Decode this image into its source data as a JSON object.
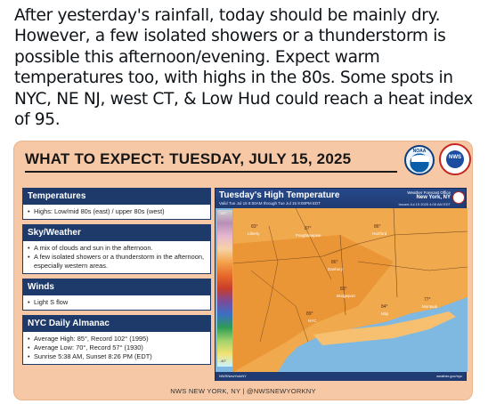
{
  "post": {
    "text": "After yesterday's rainfall, today should be mainly dry. However, a few isolated showers or a thunderstorm is possible this afternoon/evening. Expect warm temperatures too, with highs in the 80s. Some spots in NYC, NE NJ, west CT, & Low Hud could reach a heat index of 95."
  },
  "graphic": {
    "title": "WHAT TO EXPECT: TUESDAY, JULY 15, 2025",
    "logo_noaa": "NOAA",
    "logo_nws": "NWS",
    "footer": "NWS NEW YORK, NY | @NWSNEWYORKNY",
    "sections": [
      {
        "head": "Temperatures",
        "items": [
          "Highs: Low/mid 80s (east) / upper 80s (west)"
        ]
      },
      {
        "head": "Sky/Weather",
        "items": [
          "A mix of clouds and sun in the afternoon.",
          "A few isolated showers or a thunderstorm in the afternoon, especially western areas."
        ]
      },
      {
        "head": "Winds",
        "items": [
          "Light S flow"
        ]
      },
      {
        "head": "NYC Daily Almanac",
        "items": [
          "Average High: 85°, Record 102° (1995)",
          "Average Low: 70°, Record 57° (1930)",
          "Sunrise 5:38 AM, Sunset 8:26 PM (EDT)"
        ]
      }
    ],
    "map": {
      "title": "Tuesday's High Temperature",
      "valid": "Valid Tue Jul 15 8:00AM through Tue Jul 15 9:00PM EDT",
      "office_label": "Weather Forecast Office",
      "office_city": "New York, NY",
      "issued": "Issued Jul 15 2025 4:05 AM EDT",
      "footer_left": "NWSNewYorkNY",
      "footer_right": "weather.gov/nyc",
      "legend_top": "120°",
      "legend_bottom": "-40°",
      "points": [
        {
          "label": "Liberty",
          "temp": "83°"
        },
        {
          "label": "Poughkeepsie",
          "temp": "87°"
        },
        {
          "label": "Hartford",
          "temp": "86°"
        },
        {
          "label": "Danbury",
          "temp": "86°"
        },
        {
          "label": "Bridgeport",
          "temp": "83°"
        },
        {
          "label": "NYC",
          "temp": "89°"
        },
        {
          "label": "Islip",
          "temp": "84°"
        },
        {
          "label": "Montauk",
          "temp": "77°"
        }
      ]
    },
    "colors": {
      "card": "#f6c8a6",
      "navy": "#1d3a6b"
    }
  }
}
